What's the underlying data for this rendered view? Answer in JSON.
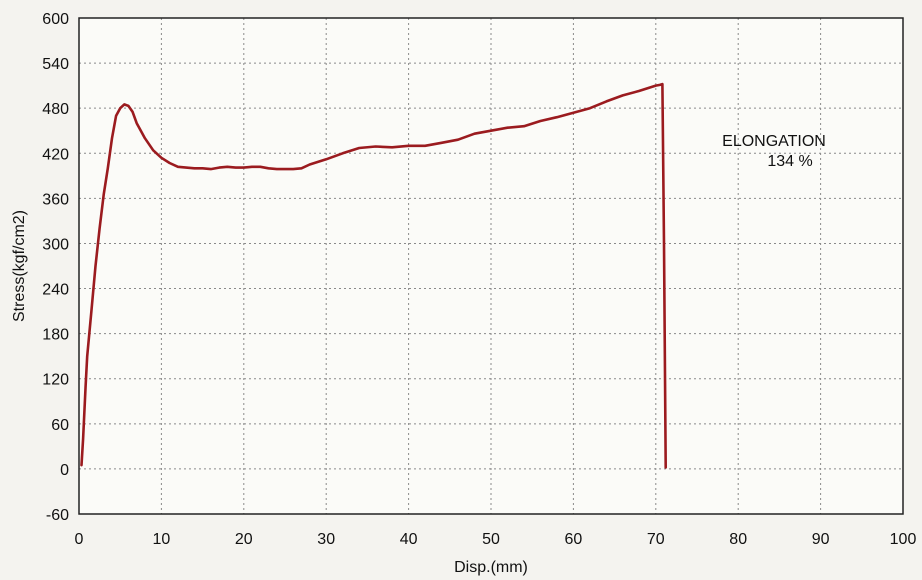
{
  "chart_data": {
    "type": "line",
    "xlabel": "Disp.(mm)",
    "ylabel": "Stress(kgf/cm2)",
    "xlim": [
      0,
      100
    ],
    "ylim": [
      -60,
      600
    ],
    "xticks": [
      0,
      10,
      20,
      30,
      40,
      50,
      60,
      70,
      80,
      90,
      100
    ],
    "yticks": [
      -60,
      0,
      60,
      120,
      180,
      240,
      300,
      360,
      420,
      480,
      540,
      600
    ],
    "grid": true,
    "line_color": "#9b1b1f",
    "annotation": {
      "line1": "ELONGATION",
      "line2": "134 %"
    },
    "series": [
      {
        "x": [
          0.3,
          0.5,
          0.8,
          1.0,
          1.5,
          2.0,
          2.5,
          3.0,
          3.5,
          4.0,
          4.5,
          5.0,
          5.5,
          6.0,
          6.5,
          7.0,
          8.0,
          9.0,
          10.0,
          11.0,
          12.0,
          13.0,
          14.0,
          15.0,
          16.0,
          17.0,
          18.0,
          19.0,
          20.0,
          21.0,
          22.0,
          23.0,
          24.0,
          25.0,
          26.0,
          27.0,
          28.0,
          30.0,
          32.0,
          34.0,
          36.0,
          38.0,
          40.0,
          42.0,
          44.0,
          46.0,
          48.0,
          50.0,
          52.0,
          54.0,
          56.0,
          58.0,
          60.0,
          62.0,
          64.0,
          66.0,
          68.0,
          70.0,
          70.5,
          70.8,
          71.0,
          71.2
        ],
        "y": [
          5,
          40,
          110,
          150,
          210,
          270,
          320,
          365,
          400,
          440,
          470,
          480,
          485,
          483,
          475,
          460,
          440,
          424,
          414,
          407,
          402,
          401,
          400,
          400,
          399,
          401,
          402,
          401,
          401,
          402,
          402,
          400,
          399,
          399,
          399,
          400,
          405,
          412,
          420,
          427,
          429,
          428,
          430,
          430,
          434,
          438,
          446,
          450,
          454,
          456,
          463,
          468,
          474,
          480,
          489,
          497,
          503,
          510,
          511,
          512,
          300,
          2
        ]
      }
    ]
  }
}
